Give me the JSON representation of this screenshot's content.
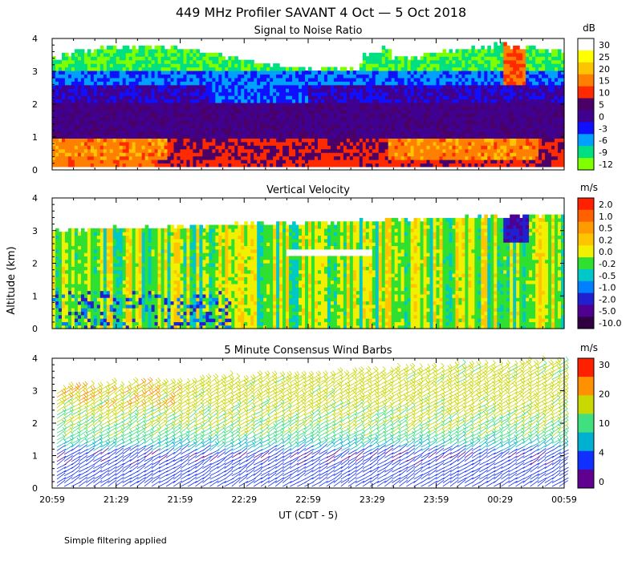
{
  "title": "449 MHz Profiler SAVANT  4 Oct —  5 Oct 2018",
  "ylabel": "Altitude (km)",
  "xlabel": "UT  (CDT - 5)",
  "footnote": "Simple filtering applied",
  "chart_data": [
    {
      "type": "heatmap",
      "title": "Signal to Noise Ratio",
      "ylabel": "Altitude (km)",
      "ylim": [
        0,
        4
      ],
      "y_ticks": [
        "0",
        "1",
        "2",
        "3",
        "4"
      ],
      "x_ticks": [
        "20:59",
        "21:29",
        "21:59",
        "22:29",
        "22:59",
        "23:29",
        "23:59",
        "00:29",
        "00:59"
      ],
      "colorbar": {
        "unit": "dB",
        "labels": [
          "30",
          "25",
          "20",
          "15",
          "10",
          "5",
          "0",
          "-3",
          "-6",
          "-9",
          "-12"
        ],
        "colors": [
          "#ffffff",
          "#ffff00",
          "#ffc400",
          "#ff8000",
          "#ff2a00",
          "#4a0066",
          "#400090",
          "#1010ff",
          "#00a0ff",
          "#00e080",
          "#80ff00"
        ]
      },
      "layers": [
        {
          "altitude_km": "0.1-0.9",
          "snr_db": "10 to 25"
        },
        {
          "altitude_km": "0.9-2.0",
          "snr_db": "0 to 5"
        },
        {
          "altitude_km": "2.0-3.0",
          "snr_db": "-6 to 0"
        },
        {
          "altitude_km": "3.0-3.6",
          "snr_db": "-12 to -6"
        }
      ]
    },
    {
      "type": "heatmap",
      "title": "Vertical Velocity",
      "ylim": [
        0,
        4
      ],
      "y_ticks": [
        "0",
        "1",
        "2",
        "3",
        "4"
      ],
      "colorbar": {
        "unit": "m/s",
        "labels": [
          "2.0",
          "1.0",
          "0.5",
          "0.2",
          "0.0",
          "-0.2",
          "-0.5",
          "-1.0",
          "-2.0",
          "-5.0",
          "-10.0"
        ],
        "colors": [
          "#ff2000",
          "#ff6000",
          "#ff9a00",
          "#ffc400",
          "#f0f000",
          "#30e030",
          "#00c8c8",
          "#0080ff",
          "#2020d0",
          "#500090",
          "#300040"
        ]
      },
      "typical_velocity_m_s": "-0.2 to 0.2"
    },
    {
      "type": "scatter",
      "title": "5 Minute Consensus Wind Barbs",
      "ylim": [
        0,
        4
      ],
      "y_ticks": [
        "0",
        "1",
        "2",
        "3",
        "4"
      ],
      "colorbar": {
        "unit": "m/s",
        "labels": [
          "30",
          "20",
          "10",
          "4",
          "0"
        ],
        "colors": [
          "#ff2000",
          "#ff9000",
          "#c8d800",
          "#40e080",
          "#00b0d0",
          "#1030ff",
          "#600090"
        ]
      },
      "speed_profile": [
        {
          "altitude_km": 0.5,
          "speed_m_s": 4
        },
        {
          "altitude_km": 1.0,
          "speed_m_s": 3
        },
        {
          "altitude_km": 1.5,
          "speed_m_s": 10
        },
        {
          "altitude_km": 2.0,
          "speed_m_s": 12
        },
        {
          "altitude_km": 2.5,
          "speed_m_s": 14
        },
        {
          "altitude_km": 3.0,
          "speed_m_s": 15
        },
        {
          "altitude_km": 3.5,
          "speed_m_s": 14
        }
      ]
    }
  ]
}
